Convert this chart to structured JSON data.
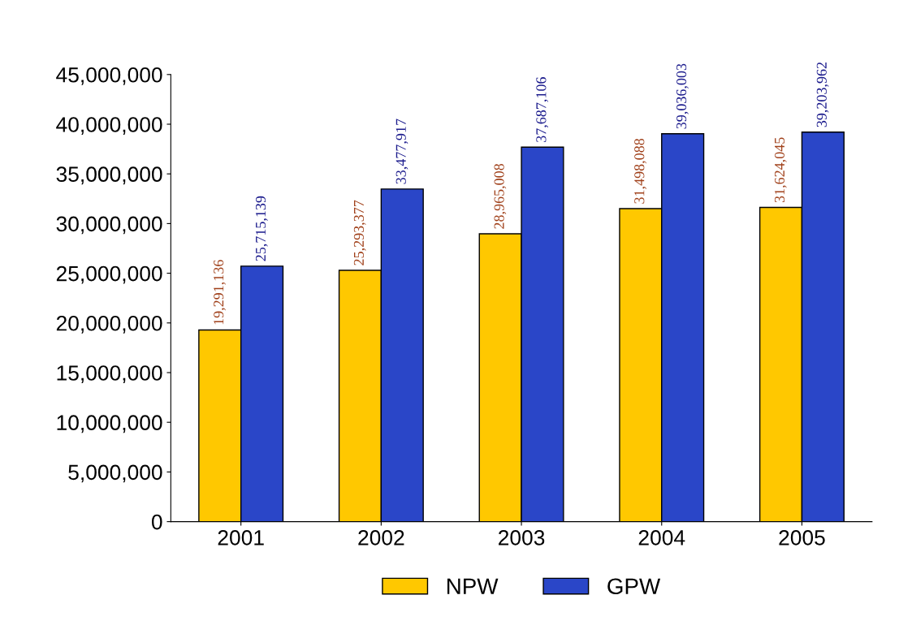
{
  "chart_data": {
    "type": "bar",
    "categories": [
      "2001",
      "2002",
      "2003",
      "2004",
      "2005"
    ],
    "series": [
      {
        "name": "NPW",
        "color": "#ffc800",
        "values": [
          19291136,
          25293377,
          28965008,
          31498088,
          31624045
        ],
        "value_labels": [
          "19,291,136",
          "25,293,377",
          "28,965,008",
          "31,498,088",
          "31,624,045"
        ]
      },
      {
        "name": "GPW",
        "color": "#2a46c8",
        "values": [
          25715139,
          33477917,
          37687106,
          39036003,
          39203962
        ],
        "value_labels": [
          "25,715,139",
          "33,477,917",
          "37,687,106",
          "39,036,003",
          "39,203,962"
        ]
      }
    ],
    "ylim": [
      0,
      45000000
    ],
    "yticks": [
      {
        "value": 0,
        "label": "0"
      },
      {
        "value": 5000000,
        "label": "5,000,000"
      },
      {
        "value": 10000000,
        "label": "10,000,000"
      },
      {
        "value": 15000000,
        "label": "15,000,000"
      },
      {
        "value": 20000000,
        "label": "20,000,000"
      },
      {
        "value": 25000000,
        "label": "25,000,000"
      },
      {
        "value": 30000000,
        "label": "30,000,000"
      },
      {
        "value": 35000000,
        "label": "35,000,000"
      },
      {
        "value": 40000000,
        "label": "40,000,000"
      },
      {
        "value": 45000000,
        "label": "45,000,000"
      }
    ],
    "grid": false,
    "legend": "bottom"
  }
}
